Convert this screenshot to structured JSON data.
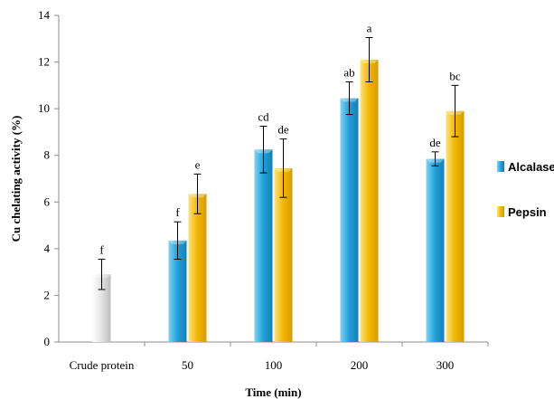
{
  "chart_data": {
    "type": "bar",
    "xlabel": "Time (min)",
    "ylabel": "Cu chelating activity (%)",
    "ylim": [
      0,
      14
    ],
    "yticks": [
      0,
      2,
      4,
      6,
      8,
      10,
      12,
      14
    ],
    "grid": false,
    "legend_position": "right",
    "categories": [
      "Crude protein",
      "50",
      "100",
      "200",
      "300"
    ],
    "series": [
      {
        "name": "Alcalase",
        "color": "#2aa6dc",
        "values": [
          null,
          4.35,
          8.25,
          10.45,
          7.85
        ],
        "errors": [
          null,
          0.8,
          1.0,
          0.7,
          0.3
        ],
        "labels": [
          "",
          "f",
          "cd",
          "ab",
          "de"
        ]
      },
      {
        "name": "Pepsin",
        "color": "#f2b600",
        "values": [
          null,
          6.35,
          7.45,
          12.1,
          9.9
        ],
        "errors": [
          null,
          0.85,
          1.25,
          0.95,
          1.1
        ],
        "labels": [
          "",
          "e",
          "de",
          "a",
          "bc"
        ]
      }
    ],
    "crude_protein": {
      "value": 2.9,
      "error": 0.65,
      "label": "f",
      "color": "#d9d9d9"
    }
  }
}
